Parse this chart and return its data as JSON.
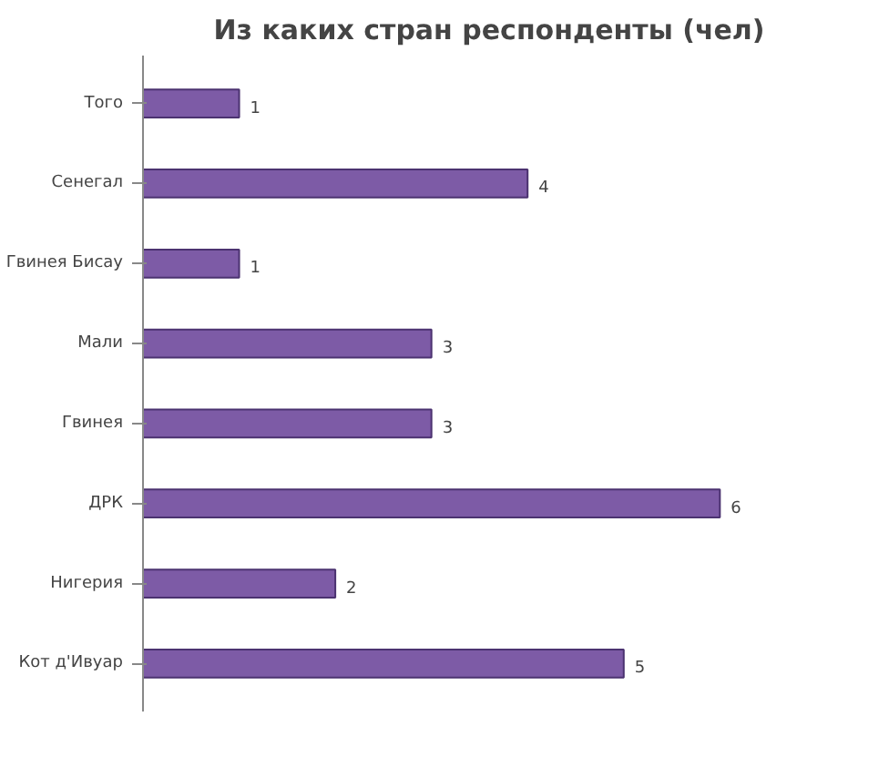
{
  "chart_data": {
    "type": "bar",
    "orientation": "horizontal",
    "title": "Из каких стран респонденты (чел)",
    "categories": [
      "Того",
      "Сенегал",
      "Гвинея Бисау",
      "Мали",
      "Гвинея",
      "ДРК",
      "Нигерия",
      "Кот д'Ивуар"
    ],
    "values": [
      1,
      4,
      1,
      3,
      3,
      6,
      2,
      5
    ],
    "color": "#7d5ba6",
    "data_labels": true,
    "grid": false
  }
}
